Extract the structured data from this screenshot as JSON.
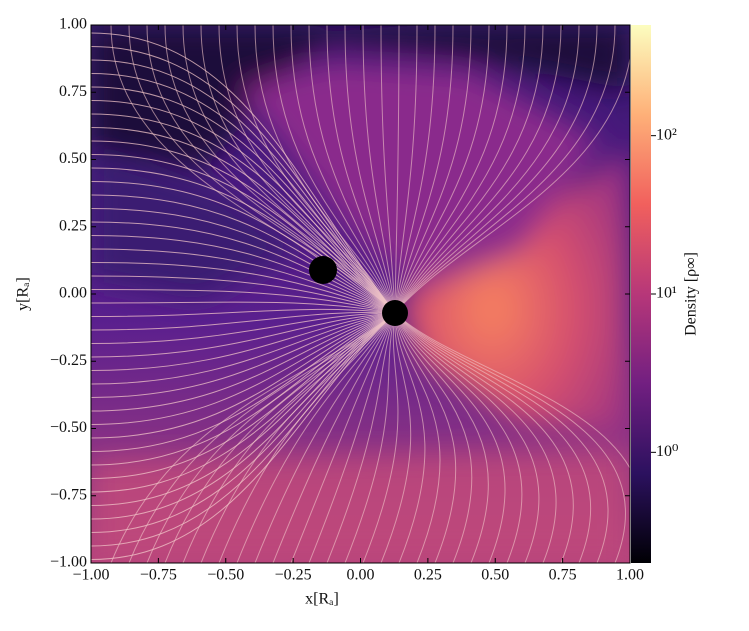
{
  "chart_data": {
    "type": "heatmap",
    "xlabel": "x[Rₐ]",
    "ylabel": "y[Rₐ]",
    "xlim": [
      -1,
      1
    ],
    "ylim": [
      -1,
      1
    ],
    "xticks": [
      {
        "value": -1,
        "label": "−1.00"
      },
      {
        "value": -0.75,
        "label": "−0.75"
      },
      {
        "value": -0.5,
        "label": "−0.50"
      },
      {
        "value": -0.25,
        "label": "−0.25"
      },
      {
        "value": 0,
        "label": "0.00"
      },
      {
        "value": 0.25,
        "label": "0.25"
      },
      {
        "value": 0.5,
        "label": "0.50"
      },
      {
        "value": 0.75,
        "label": "0.75"
      },
      {
        "value": 1,
        "label": "1.00"
      }
    ],
    "yticks": [
      {
        "value": -1,
        "label": "−1.00"
      },
      {
        "value": -0.75,
        "label": "−0.75"
      },
      {
        "value": -0.5,
        "label": "−0.50"
      },
      {
        "value": -0.25,
        "label": "−0.25"
      },
      {
        "value": 0,
        "label": "0.00"
      },
      {
        "value": 0.25,
        "label": "0.25"
      },
      {
        "value": 0.5,
        "label": "0.50"
      },
      {
        "value": 0.75,
        "label": "0.75"
      },
      {
        "value": 1,
        "label": "1.00"
      }
    ],
    "colorbar": {
      "label": "Density [ρ∞]",
      "lim": [
        0.2,
        500
      ],
      "log": true,
      "colormap": "magma",
      "ticks": [
        {
          "value": 1,
          "label": "10⁰"
        },
        {
          "value": 10,
          "label": "10¹"
        },
        {
          "value": 100,
          "label": "10²"
        }
      ]
    }
  }
}
